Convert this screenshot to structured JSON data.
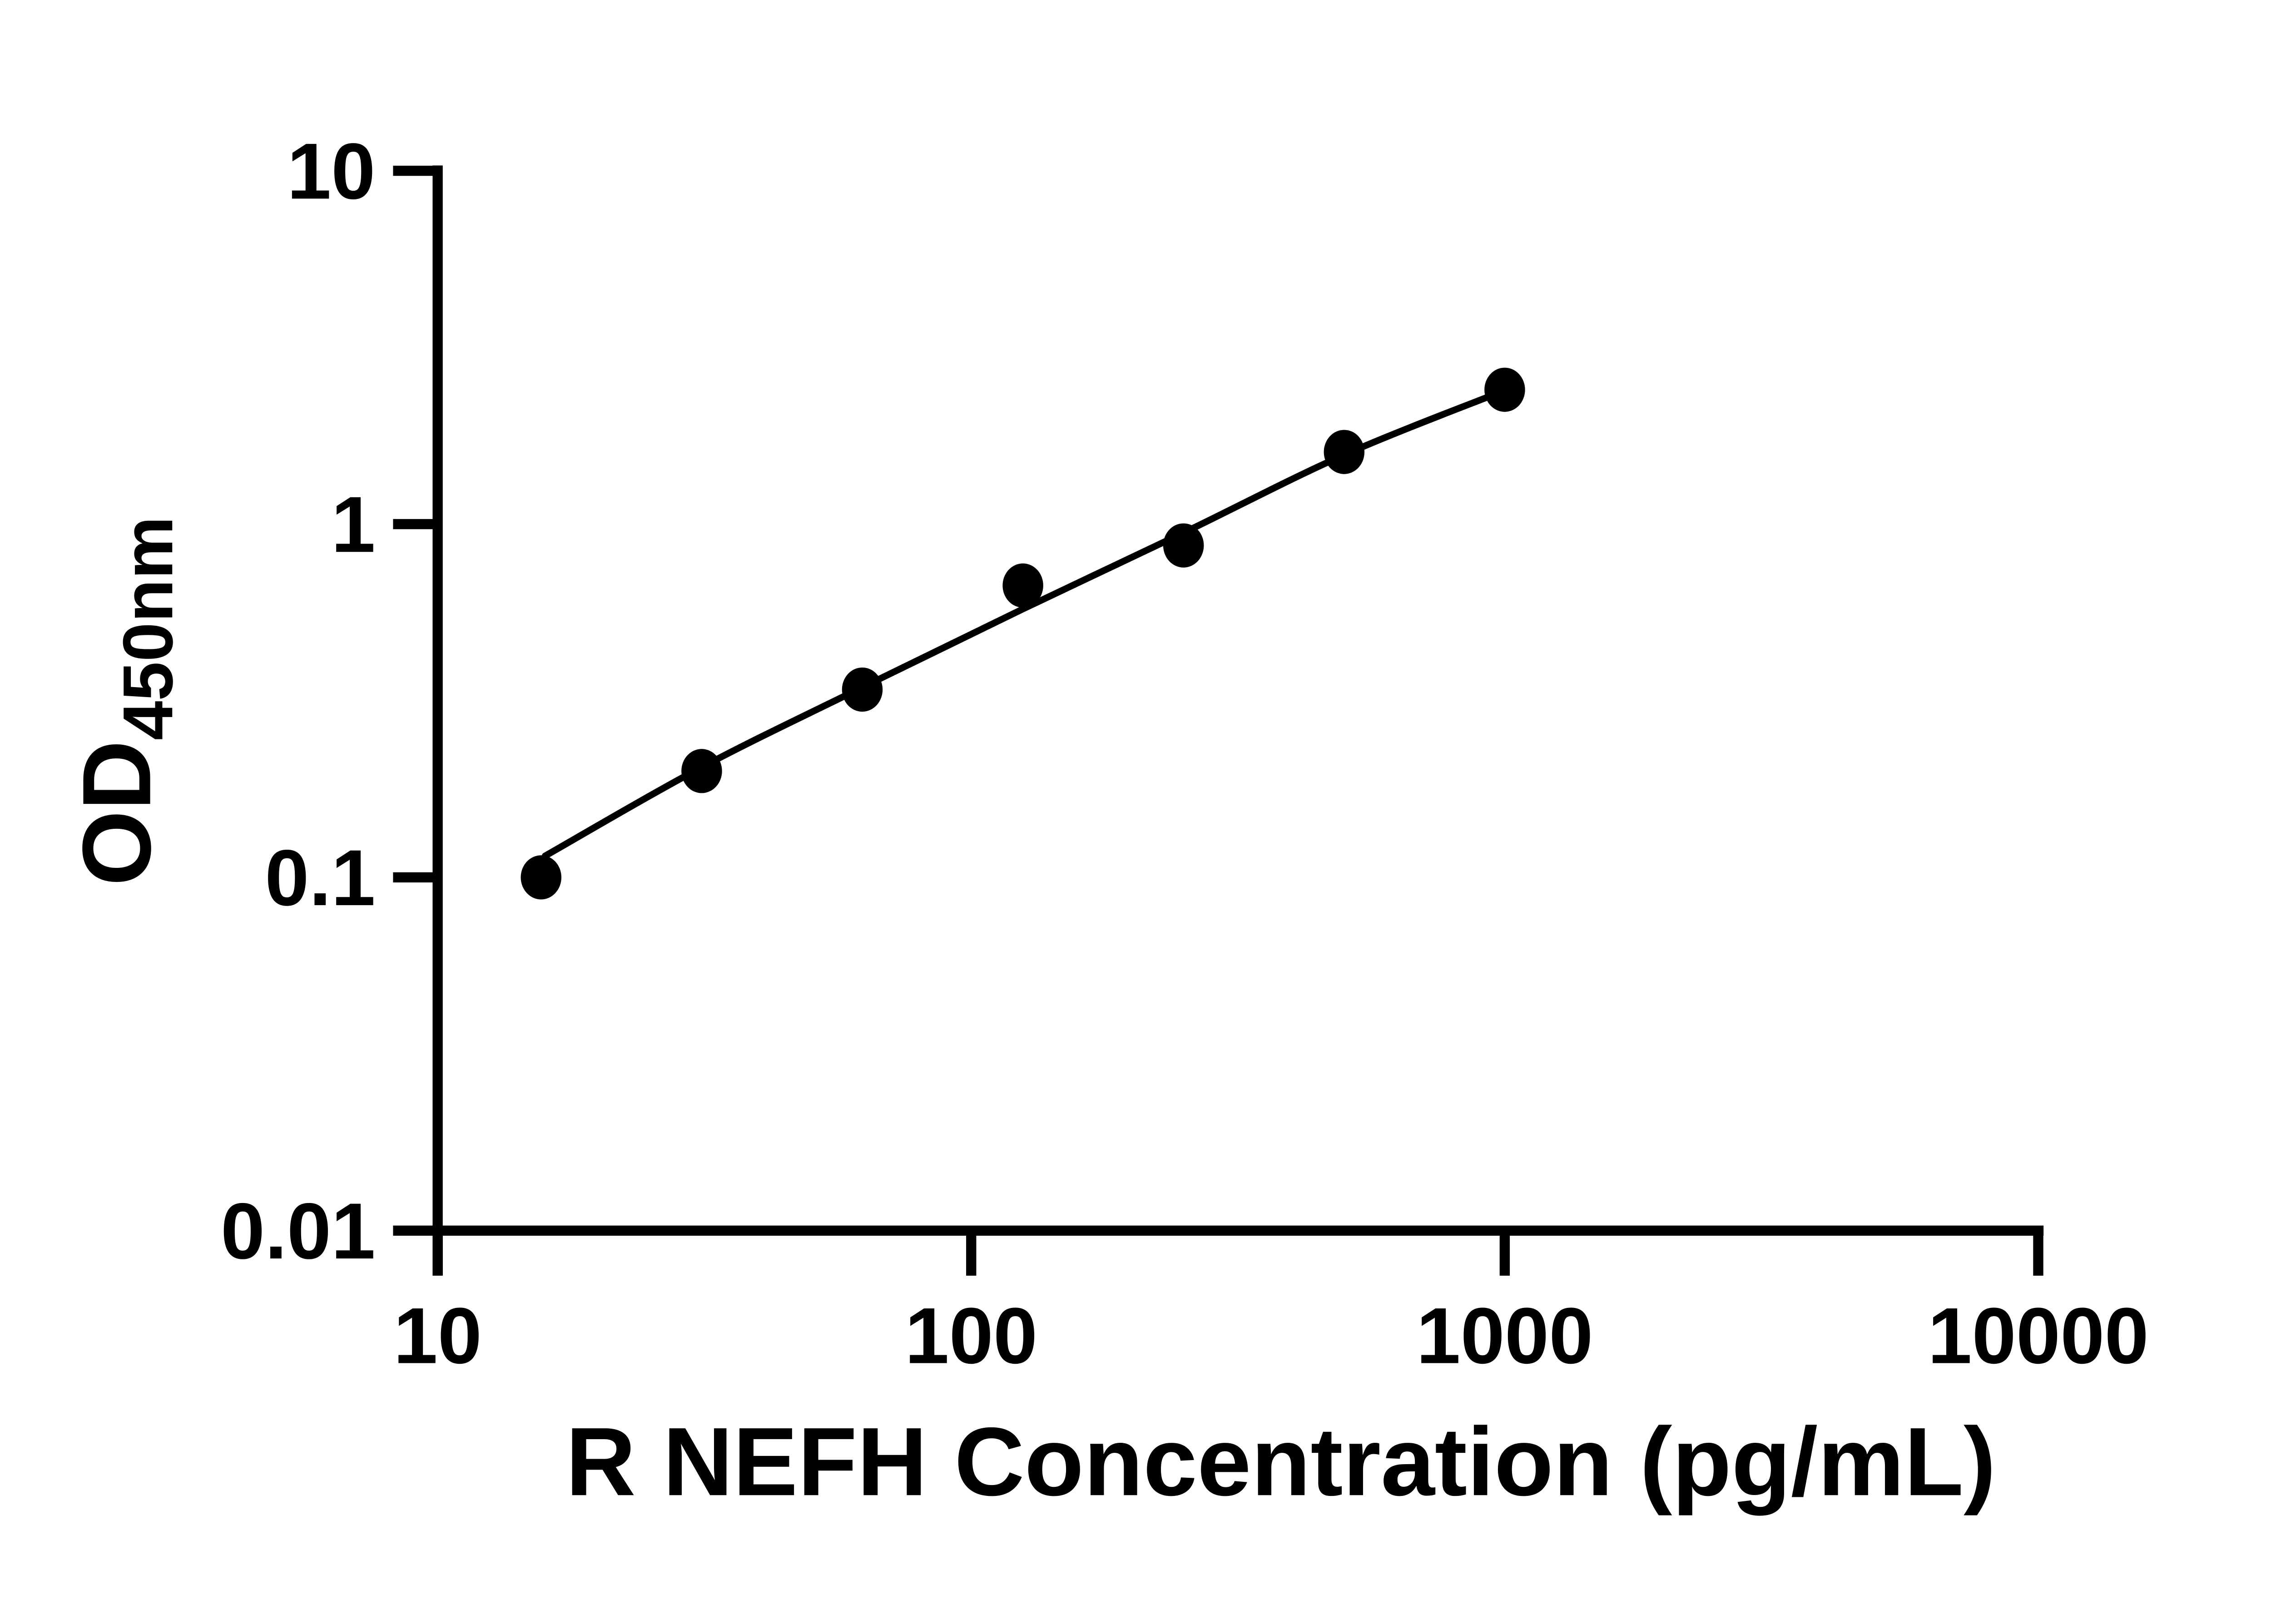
{
  "figure": {
    "background_color": "#ffffff",
    "ink_color": "#000000"
  },
  "chart_data": {
    "type": "scatter",
    "title": "",
    "xlabel": "R NEFH Concentration (pg/mL)",
    "ylabel_main": "OD",
    "ylabel_subscript": "450nm",
    "x_scale": "log10",
    "y_scale": "log10",
    "xlim": [
      10,
      10000
    ],
    "ylim": [
      0.01,
      10
    ],
    "grid": "off",
    "legend": "none",
    "x_ticks": [
      {
        "value": 10,
        "label": "10"
      },
      {
        "value": 100,
        "label": "100"
      },
      {
        "value": 1000,
        "label": "1000"
      },
      {
        "value": 10000,
        "label": "10000"
      }
    ],
    "y_ticks": [
      {
        "value": 10,
        "label": "10"
      },
      {
        "value": 1,
        "label": "1"
      },
      {
        "value": 0.1,
        "label": "0.1"
      },
      {
        "value": 0.01,
        "label": "0.01"
      }
    ],
    "series": [
      {
        "name": "standard curve data points",
        "marker": "filled-circle",
        "color": "#000000",
        "points": [
          {
            "x": 15.625,
            "y": 0.1
          },
          {
            "x": 31.25,
            "y": 0.2
          },
          {
            "x": 62.5,
            "y": 0.34
          },
          {
            "x": 125,
            "y": 0.67
          },
          {
            "x": 250,
            "y": 0.87
          },
          {
            "x": 500,
            "y": 1.6
          },
          {
            "x": 1000,
            "y": 2.4
          }
        ]
      }
    ],
    "fit_curve": {
      "name": "fitted standard curve line",
      "color": "#000000",
      "points": [
        {
          "x": 15.9,
          "y": 0.115
        },
        {
          "x": 31.25,
          "y": 0.205
        },
        {
          "x": 62.5,
          "y": 0.345
        },
        {
          "x": 125,
          "y": 0.575
        },
        {
          "x": 250,
          "y": 0.945
        },
        {
          "x": 500,
          "y": 1.57
        },
        {
          "x": 1000,
          "y": 2.39
        }
      ]
    }
  }
}
